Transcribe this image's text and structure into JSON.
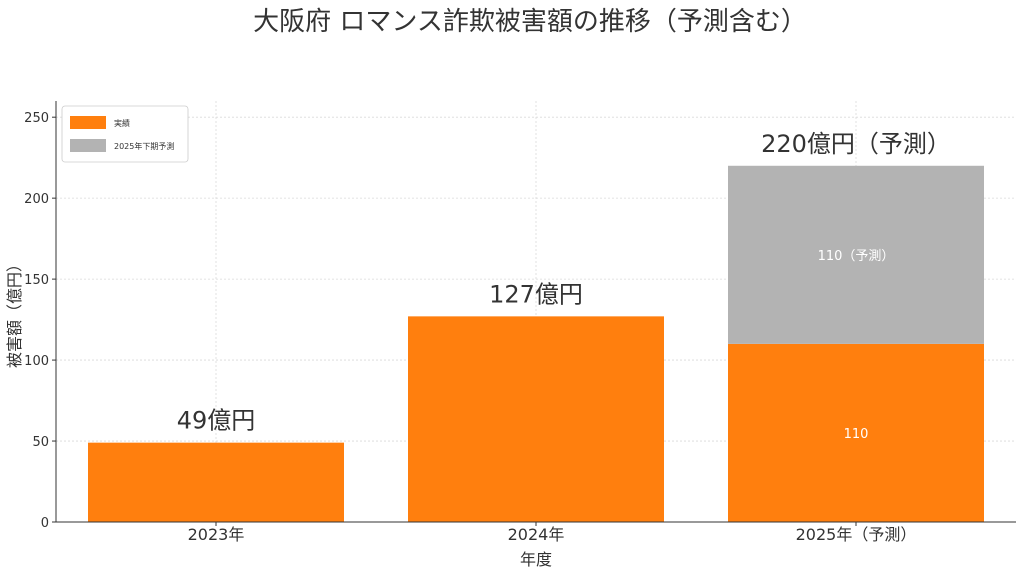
{
  "title": "大阪府 ロマンス詐欺被害額の推移（予測含む）",
  "chart_data": {
    "type": "bar",
    "stacked": true,
    "categories": [
      "2023年",
      "2024年",
      "2025年（予測）"
    ],
    "series": [
      {
        "name": "実績",
        "values": [
          49,
          127,
          110
        ],
        "color": "#ff7f0e"
      },
      {
        "name": "2025年下期予測",
        "values": [
          0,
          0,
          110
        ],
        "color": "#b3b3b3"
      }
    ],
    "total_labels": [
      "49億円",
      "127億円",
      "220億円（予測）"
    ],
    "segment_labels": [
      {
        "category_index": 2,
        "series_index": 0,
        "text": "110"
      },
      {
        "category_index": 2,
        "series_index": 1,
        "text": "110（予測）"
      }
    ],
    "xlabel": "年度",
    "ylabel": "被害額（億円）",
    "ylim": [
      0,
      260
    ],
    "yticks": [
      "0",
      "50",
      "100",
      "150",
      "200",
      "250"
    ],
    "ytick_values": [
      0,
      50,
      100,
      150,
      200,
      250
    ],
    "grid": true,
    "legend_position": "top-left"
  }
}
